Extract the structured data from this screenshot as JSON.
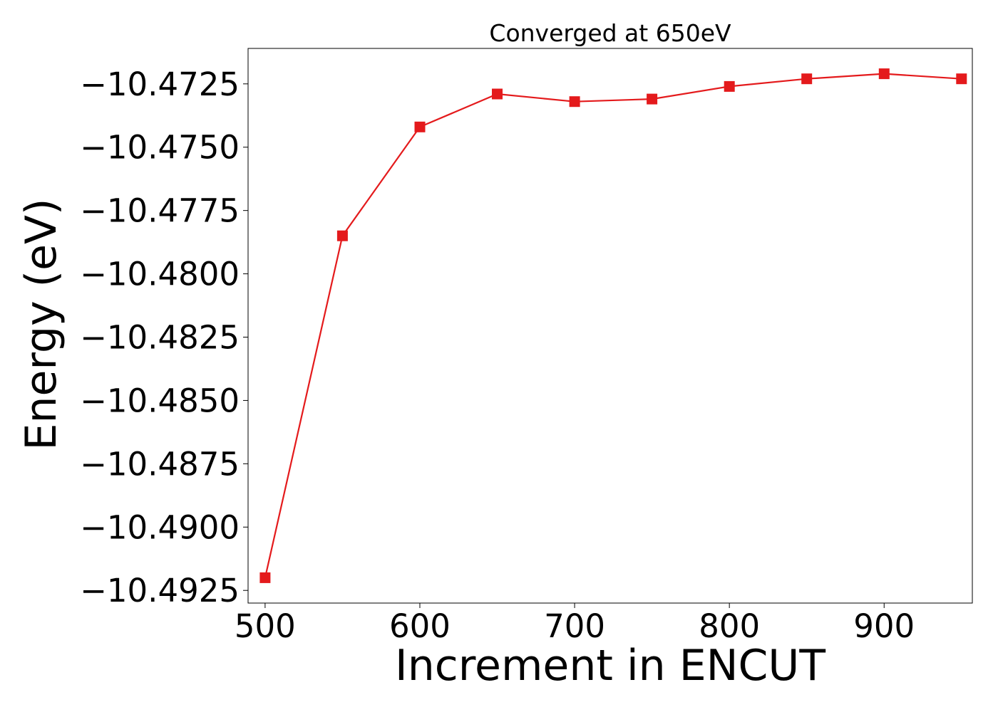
{
  "chart_data": {
    "type": "line",
    "title": "Converged at 650eV",
    "xlabel": "Increment in ENCUT",
    "ylabel": "Energy (eV)",
    "xlim": [
      489,
      957
    ],
    "ylim": [
      -10.493,
      -10.4711
    ],
    "x_ticks": [
      500,
      600,
      700,
      800,
      900
    ],
    "y_ticks": [
      -10.4725,
      -10.475,
      -10.4775,
      -10.48,
      -10.4825,
      -10.485,
      -10.4875,
      -10.49,
      -10.4925
    ],
    "x_tick_labels": [
      "500",
      "600",
      "700",
      "800",
      "900"
    ],
    "y_tick_labels": [
      "−10.4725",
      "−10.4750",
      "−10.4775",
      "−10.4800",
      "−10.4825",
      "−10.4850",
      "−10.4875",
      "−10.4900",
      "−10.4925"
    ],
    "grid": false,
    "series": [
      {
        "marker": "square",
        "color": "#e41a1c",
        "x": [
          500,
          550,
          600,
          650,
          700,
          750,
          800,
          850,
          900,
          950
        ],
        "y": [
          -10.492,
          -10.4785,
          -10.4742,
          -10.4729,
          -10.4732,
          -10.4731,
          -10.4726,
          -10.4723,
          -10.4721,
          -10.4723
        ]
      }
    ]
  }
}
